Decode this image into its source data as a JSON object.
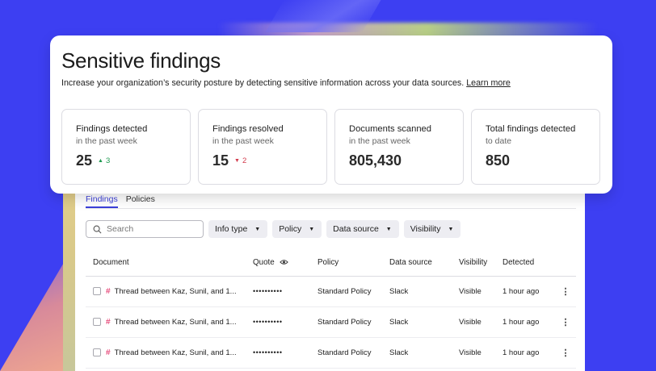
{
  "header": {
    "title": "Sensitive findings",
    "description": "Increase your organization’s security posture by detecting sensitive information across your data sources.",
    "learn_more": "Learn more"
  },
  "stats": [
    {
      "label": "Findings detected",
      "sub": "in the past week",
      "value": "25",
      "delta": "3",
      "delta_direction": "up"
    },
    {
      "label": "Findings resolved",
      "sub": "in the past week",
      "value": "15",
      "delta": "2",
      "delta_direction": "down"
    },
    {
      "label": "Documents scanned",
      "sub": "in the past week",
      "value": "805,430"
    },
    {
      "label": "Total findings detected",
      "sub": "to date",
      "value": "850"
    }
  ],
  "tabs": [
    {
      "label": "Findings",
      "active": true
    },
    {
      "label": "Policies",
      "active": false
    }
  ],
  "search": {
    "placeholder": "Search",
    "icon": "search-icon"
  },
  "filters": [
    "Info type",
    "Policy",
    "Data source",
    "Visibility"
  ],
  "table": {
    "columns": [
      "Document",
      "Quote",
      "Policy",
      "Data source",
      "Visibility",
      "Detected"
    ],
    "quote_icon": "eye-icon",
    "rows": [
      {
        "document": "Thread between Kaz, Sunil, and 1...",
        "quote": "••••••••••",
        "policy": "Standard Policy",
        "source": "Slack",
        "visibility": "Visible",
        "detected": "1 hour ago"
      },
      {
        "document": "Thread between Kaz, Sunil, and 1...",
        "quote": "••••••••••",
        "policy": "Standard Policy",
        "source": "Slack",
        "visibility": "Visible",
        "detected": "1 hour ago"
      },
      {
        "document": "Thread between Kaz, Sunil, and 1...",
        "quote": "••••••••••",
        "policy": "Standard Policy",
        "source": "Slack",
        "visibility": "Visible",
        "detected": "1 hour ago"
      }
    ]
  },
  "colors": {
    "background": "#3d3ff2",
    "accent": "#3b3fd9",
    "positive": "#1e9a50",
    "negative": "#d23b4c"
  }
}
